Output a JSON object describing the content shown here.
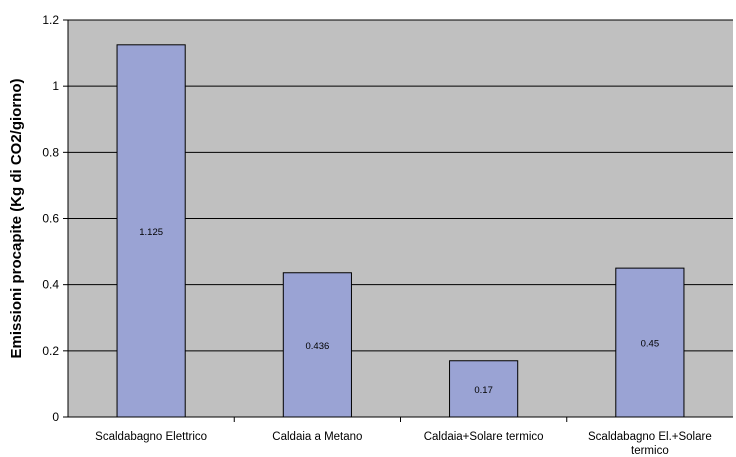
{
  "chart_data": {
    "type": "bar",
    "title": "",
    "xlabel": "",
    "ylabel": "Emissioni procapite (Kg di CO2/giorno)",
    "ylim": [
      0,
      1.2
    ],
    "yticks": [
      "0",
      "0.2",
      "0.4",
      "0.6",
      "0.8",
      "1",
      "1.2"
    ],
    "categories": [
      [
        "Scaldabagno Elettrico"
      ],
      [
        "Caldaia a Metano"
      ],
      [
        "Caldaia+Solare termico"
      ],
      [
        "Scaldabagno El.+Solare",
        "termico"
      ]
    ],
    "values": [
      1.125,
      0.436,
      0.17,
      0.45
    ],
    "data_labels": [
      "1.125",
      "0.436",
      "0.17",
      "0.45"
    ],
    "grid": true,
    "legend": "none",
    "colors": {
      "plot_background": "#c0c0c0",
      "bar_fill": "#9aa3d4",
      "bar_stroke": "#000000",
      "gridline": "#000000"
    }
  }
}
